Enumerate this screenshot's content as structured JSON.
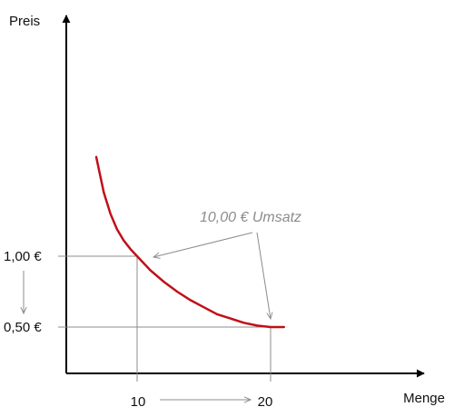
{
  "chart_data": {
    "type": "line",
    "title": "",
    "xlabel": "Menge",
    "ylabel": "Preis",
    "grid": false,
    "series": [
      {
        "color": "#c0101a",
        "x": [
          6.94,
          7.5,
          8,
          8.5,
          9,
          9.5,
          10,
          11,
          12,
          13,
          14,
          15,
          16,
          17,
          18,
          19,
          20,
          21
        ],
        "y": [
          1.7,
          1.45,
          1.3,
          1.19,
          1.11,
          1.05,
          1.0,
          0.9,
          0.82,
          0.75,
          0.69,
          0.64,
          0.59,
          0.56,
          0.53,
          0.51,
          0.5,
          0.5
        ]
      }
    ],
    "points": [
      {
        "x": 10,
        "y": 1.0,
        "x_label": "10",
        "y_label": "1,00 €"
      },
      {
        "x": 20,
        "y": 0.5,
        "x_label": "20",
        "y_label": "0,50 €"
      }
    ],
    "annotation": {
      "text": "10,00 € Umsatz",
      "color": "#8c8c8c"
    },
    "guide_color": "#8c8c8c",
    "axis_color": "#000000"
  }
}
